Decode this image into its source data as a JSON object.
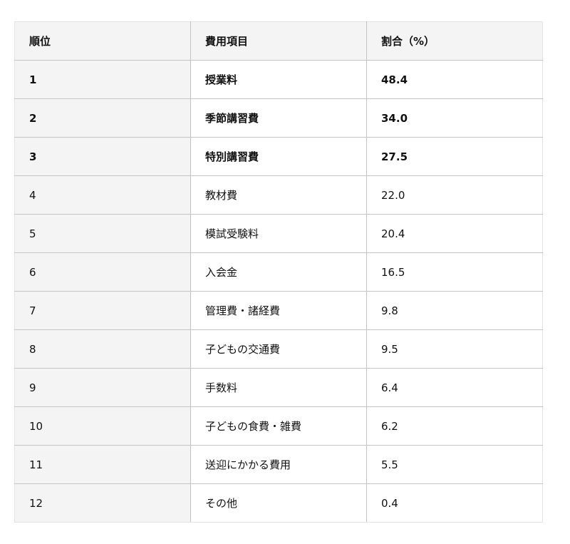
{
  "table": {
    "headers": [
      "順位",
      "費用項目",
      "割合（%）"
    ],
    "rows": [
      {
        "rank": "1",
        "item": "授業料",
        "share": "48.4",
        "bold": true
      },
      {
        "rank": "2",
        "item": "季節講習費",
        "share": "34.0",
        "bold": true
      },
      {
        "rank": "3",
        "item": "特別講習費",
        "share": "27.5",
        "bold": true
      },
      {
        "rank": "4",
        "item": "教材費",
        "share": "22.0",
        "bold": false
      },
      {
        "rank": "5",
        "item": "模試受験料",
        "share": "20.4",
        "bold": false
      },
      {
        "rank": "6",
        "item": "入会金",
        "share": "16.5",
        "bold": false
      },
      {
        "rank": "7",
        "item": "管理費・諸経費",
        "share": "9.8",
        "bold": false
      },
      {
        "rank": "8",
        "item": "子どもの交通費",
        "share": "9.5",
        "bold": false
      },
      {
        "rank": "9",
        "item": "手数料",
        "share": "6.4",
        "bold": false
      },
      {
        "rank": "10",
        "item": "子どもの食費・雑費",
        "share": "6.2",
        "bold": false
      },
      {
        "rank": "11",
        "item": "送迎にかかる費用",
        "share": "5.5",
        "bold": false
      },
      {
        "rank": "12",
        "item": "その他",
        "share": "0.4",
        "bold": false
      }
    ]
  }
}
